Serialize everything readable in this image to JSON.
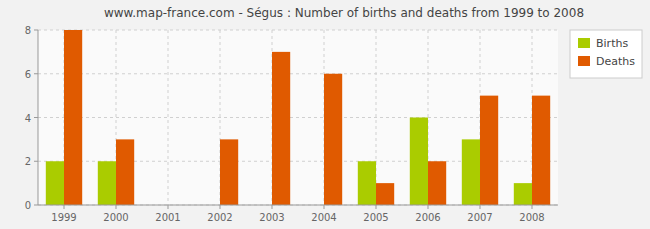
{
  "chart_data": {
    "type": "bar",
    "title": "www.map-france.com - Ségus : Number of births and deaths from 1999 to 2008",
    "categories": [
      "1999",
      "2000",
      "2001",
      "2002",
      "2003",
      "2004",
      "2005",
      "2006",
      "2007",
      "2008"
    ],
    "series": [
      {
        "name": "Births",
        "color": "#aacc00",
        "values": [
          2,
          2,
          0,
          0,
          0,
          0,
          2,
          4,
          3,
          1
        ]
      },
      {
        "name": "Deaths",
        "color": "#e05a00",
        "values": [
          8,
          3,
          0,
          3,
          7,
          6,
          1,
          2,
          5,
          5
        ]
      }
    ],
    "ylim": [
      0,
      8
    ],
    "yticks": [
      0,
      2,
      4,
      6,
      8
    ],
    "grid": true,
    "legend": "top-right"
  }
}
